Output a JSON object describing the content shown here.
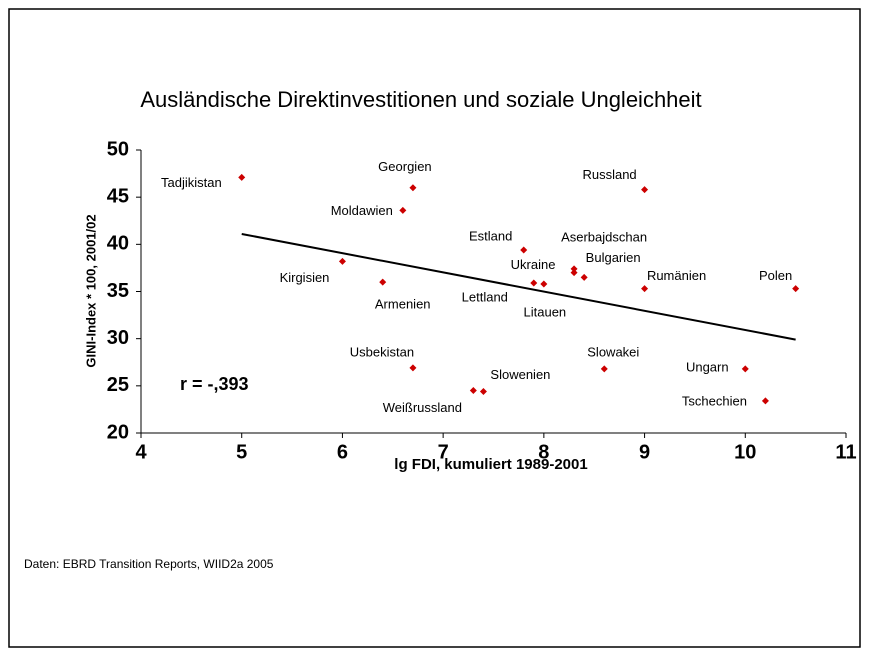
{
  "chart_data": {
    "type": "scatter",
    "title": "Ausländische Direktinvestitionen und soziale Ungleichheit",
    "x_label": "lg FDI, kumuliert 1989-2001",
    "y_label": "GINI-Index * 100, 2001/02",
    "annotation": "r = -,393",
    "source": "Daten: EBRD Transition Reports, WIID2a 2005",
    "color": "#cc0000",
    "labels": [
      "Tadjikistan",
      "Georgien",
      "Moldawien",
      "Russland",
      "Estland",
      "Lettland",
      "Litauen",
      "Ukraine",
      "Aserbajdschan",
      "Bulgarien",
      "Kirgisien",
      "Armenien",
      "Rumänien",
      "Polen",
      "Usbekistan",
      "Weißrussland",
      "Slowenien",
      "Slowakei",
      "Ungarn",
      "Tschechien"
    ],
    "x": [
      5.0,
      6.7,
      6.6,
      9.0,
      7.8,
      7.9,
      8.0,
      8.3,
      8.3,
      8.4,
      6.0,
      6.4,
      9.0,
      10.5,
      6.7,
      7.3,
      7.4,
      8.6,
      10.0,
      10.2
    ],
    "values": [
      47.1,
      46.0,
      43.6,
      45.8,
      39.4,
      35.9,
      35.8,
      37.0,
      37.4,
      36.5,
      38.2,
      36.0,
      35.3,
      35.3,
      26.9,
      24.5,
      24.4,
      26.8,
      26.8,
      23.4
    ],
    "trendline": {
      "x": [
        5,
        10.5
      ],
      "y": [
        41.1,
        29.9
      ]
    },
    "xlim": [
      4,
      11
    ],
    "xticks": [
      4,
      5,
      6,
      7,
      8,
      9,
      10,
      11
    ],
    "ylim": [
      20,
      50
    ],
    "yticks": [
      20,
      25,
      30,
      35,
      40,
      45,
      50
    ]
  }
}
